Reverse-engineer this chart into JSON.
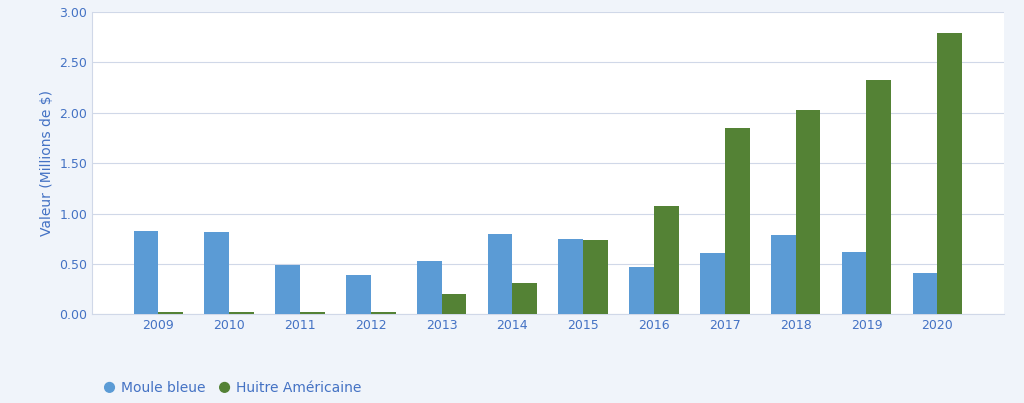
{
  "years": [
    2009,
    2010,
    2011,
    2012,
    2013,
    2014,
    2015,
    2016,
    2017,
    2018,
    2019,
    2020
  ],
  "moule_bleue": [
    0.83,
    0.82,
    0.49,
    0.39,
    0.53,
    0.8,
    0.75,
    0.47,
    0.61,
    0.79,
    0.62,
    0.41
  ],
  "huitre_americaine": [
    0.02,
    0.02,
    0.02,
    0.02,
    0.2,
    0.31,
    0.74,
    1.08,
    1.85,
    2.03,
    2.33,
    2.79
  ],
  "moule_color": "#5B9BD5",
  "huitre_color": "#548235",
  "ylabel": "Valeur (Millions de $)",
  "ylim": [
    0.0,
    3.0
  ],
  "yticks": [
    0.0,
    0.5,
    1.0,
    1.5,
    2.0,
    2.5,
    3.0
  ],
  "legend_moule": "Moule bleue",
  "legend_huitre": "Huitre Américaine",
  "figure_bg": "#f0f4fa",
  "plot_bg": "#ffffff",
  "grid_color": "#d0d8e8",
  "bar_width": 0.35,
  "ylabel_color": "#4472C4",
  "tick_color": "#4472C4",
  "axis_label_fontsize": 10,
  "tick_fontsize": 9,
  "legend_fontsize": 10
}
